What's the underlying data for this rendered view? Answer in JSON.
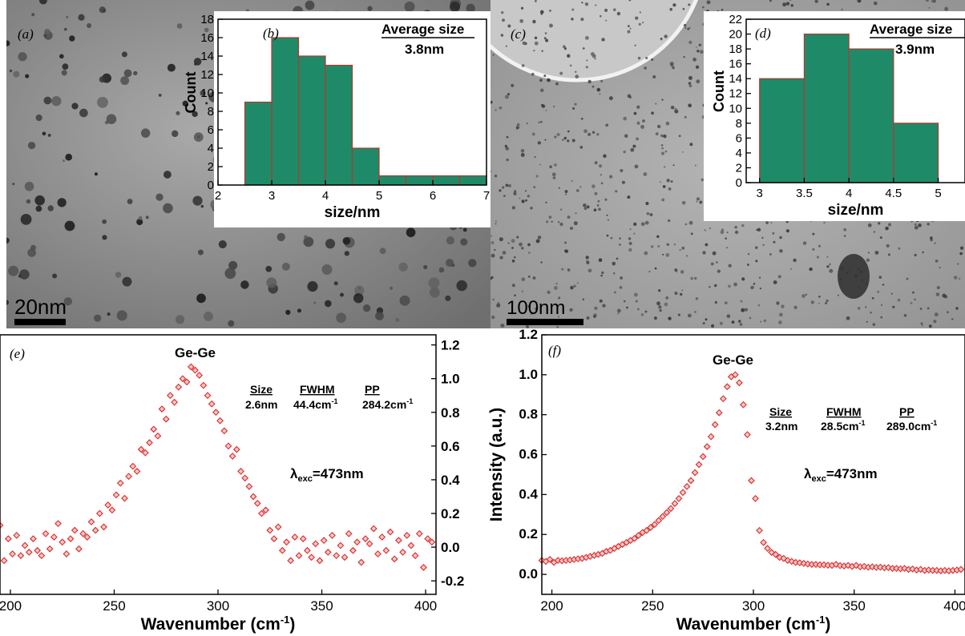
{
  "panels": {
    "a": {
      "label": "(a)",
      "scale_bar": "20nm"
    },
    "b": {
      "label": "(b)",
      "avg_title": "Average size",
      "avg_value": "3.8nm"
    },
    "c": {
      "label": "(c)",
      "scale_bar": "100nm"
    },
    "d": {
      "label": "(d)",
      "avg_title": "Average size",
      "avg_value": "3.9nm"
    },
    "e": {
      "label": "(e)",
      "peak_label": "Ge-Ge",
      "table": {
        "h1": "Size",
        "h2": "FWHM",
        "h3": "PP",
        "v1": "2.6nm",
        "v2": "44.4cm",
        "v3": "284.2cm",
        "sup": "-1"
      },
      "lambda": {
        "base": "λ",
        "sub": "exc",
        "rest": "=473nm"
      }
    },
    "f": {
      "label": "(f)",
      "peak_label": "Ge-Ge",
      "table": {
        "h1": "Size",
        "h2": "FWHM",
        "h3": "PP",
        "v1": "3.2nm",
        "v2": "28.5cm",
        "v3": "289.0cm",
        "sup": "-1"
      },
      "lambda": {
        "base": "λ",
        "sub": "exc",
        "rest": "=473nm"
      }
    }
  },
  "colors": {
    "bar_fill": "#1f8a68",
    "bar_edge": "#b0392f",
    "marker": "#d92b2b",
    "tem_a_bg": "#8c8c8c",
    "tem_c_bg": "#a8a8a8"
  },
  "chart_data": [
    {
      "id": "b",
      "type": "bar",
      "bin_edges": [
        2.5,
        3.0,
        3.5,
        4.0,
        4.5,
        5.0,
        5.5,
        6.0,
        6.5,
        7.0
      ],
      "values": [
        9,
        16,
        14,
        13,
        4,
        1,
        1,
        1,
        1
      ],
      "xlabel": "size/nm",
      "ylabel": "Count",
      "xlim": [
        2,
        7
      ],
      "ylim": [
        0,
        18
      ],
      "xticks": [
        2,
        3,
        4,
        5,
        6,
        7
      ],
      "xtick_labels": [
        "2",
        "3",
        "4",
        "5",
        "6",
        "7"
      ],
      "yticks": [
        0,
        2,
        4,
        6,
        8,
        10,
        12,
        14,
        16,
        18
      ],
      "ytick_labels": [
        "0",
        "2",
        "4",
        "6",
        "8",
        "10",
        "12",
        "14",
        "16",
        "18"
      ]
    },
    {
      "id": "d",
      "type": "bar",
      "bin_edges": [
        3.0,
        3.5,
        4.0,
        4.5,
        5.0
      ],
      "values": [
        14,
        20,
        18,
        8
      ],
      "xlabel": "size/nm",
      "ylabel": "Count",
      "xlim": [
        2.85,
        5.3
      ],
      "ylim": [
        0,
        22
      ],
      "xticks": [
        3,
        3.5,
        4,
        4.5,
        5
      ],
      "xtick_labels": [
        "3",
        "3.5",
        "4",
        "4.5",
        "5"
      ],
      "yticks": [
        0,
        2,
        4,
        6,
        8,
        10,
        12,
        14,
        16,
        18,
        20,
        22
      ],
      "ytick_labels": [
        "0",
        "2",
        "4",
        "6",
        "8",
        "10",
        "12",
        "14",
        "16",
        "18",
        "20",
        "22"
      ]
    },
    {
      "id": "e",
      "type": "scatter",
      "x": [
        195,
        197,
        199,
        201,
        203,
        205,
        207,
        209,
        211,
        213,
        215,
        217,
        219,
        221,
        223,
        225,
        227,
        229,
        231,
        233,
        235,
        237,
        239,
        241,
        243,
        245,
        247,
        249,
        251,
        253,
        255,
        257,
        259,
        261,
        263,
        265,
        267,
        269,
        271,
        273,
        275,
        277,
        279,
        281,
        283,
        285,
        287,
        289,
        291,
        293,
        295,
        297,
        299,
        301,
        303,
        305,
        307,
        309,
        311,
        313,
        315,
        317,
        319,
        321,
        323,
        325,
        327,
        329,
        331,
        333,
        335,
        337,
        339,
        341,
        343,
        345,
        347,
        349,
        351,
        353,
        355,
        357,
        359,
        361,
        363,
        365,
        367,
        369,
        371,
        373,
        375,
        377,
        379,
        381,
        383,
        385,
        387,
        389,
        391,
        393,
        395,
        397,
        399,
        401,
        403
      ],
      "y": [
        0.13,
        -0.08,
        0.05,
        -0.04,
        0.07,
        -0.05,
        0.01,
        -0.03,
        0.05,
        -0.02,
        -0.05,
        0.08,
        -0.01,
        0.06,
        0.14,
        0.03,
        -0.04,
        0.05,
        0.1,
        -0.01,
        0.08,
        0.06,
        0.15,
        0.1,
        0.2,
        0.12,
        0.25,
        0.22,
        0.31,
        0.38,
        0.29,
        0.42,
        0.48,
        0.45,
        0.58,
        0.56,
        0.62,
        0.7,
        0.66,
        0.82,
        0.76,
        0.9,
        0.86,
        0.95,
        1.0,
        0.98,
        1.07,
        1.05,
        1.02,
        0.96,
        0.9,
        0.85,
        0.8,
        0.75,
        0.69,
        0.6,
        0.54,
        0.58,
        0.45,
        0.41,
        0.36,
        0.3,
        0.26,
        0.2,
        0.22,
        0.1,
        0.05,
        0.12,
        -0.02,
        0.03,
        -0.08,
        0.06,
        -0.05,
        0.05,
        -0.02,
        -0.06,
        0.02,
        -0.08,
        0.04,
        -0.03,
        0.07,
        -0.05,
        0.01,
        -0.06,
        0.08,
        -0.02,
        0.03,
        -0.09,
        0.05,
        0.02,
        0.11,
        -0.04,
        0.06,
        -0.02,
        0.09,
        -0.07,
        0.04,
        -0.03,
        0.07,
        0.01,
        -0.05,
        0.08,
        -0.12,
        0.05,
        0.03
      ],
      "xlabel": "Wavenumber (cm",
      "xlabel_sup": "-1",
      "xlabel_end": ")",
      "ylabel": "",
      "xlim": [
        195,
        405
      ],
      "ylim": [
        -0.28,
        1.26
      ],
      "xticks": [
        200,
        250,
        300,
        350,
        400
      ],
      "xtick_labels": [
        "200",
        "250",
        "300",
        "350",
        "400"
      ],
      "yticks": [
        -0.2,
        0.0,
        0.2,
        0.4,
        0.6,
        0.8,
        1.0,
        1.2
      ],
      "ytick_labels": [
        "-0.2",
        "0.0",
        "0.2",
        "0.4",
        "0.6",
        "0.8",
        "1.0",
        "1.2"
      ]
    },
    {
      "id": "f",
      "type": "scatter",
      "x": [
        195,
        197,
        199,
        201,
        203,
        205,
        207,
        209,
        211,
        213,
        215,
        217,
        219,
        221,
        223,
        225,
        227,
        229,
        231,
        233,
        235,
        237,
        239,
        241,
        243,
        245,
        247,
        249,
        251,
        253,
        255,
        257,
        259,
        261,
        263,
        265,
        267,
        269,
        271,
        273,
        275,
        277,
        279,
        281,
        283,
        285,
        287,
        289,
        291,
        293,
        295,
        297,
        299,
        301,
        303,
        305,
        307,
        309,
        311,
        313,
        315,
        317,
        319,
        321,
        323,
        325,
        327,
        329,
        331,
        333,
        335,
        337,
        339,
        341,
        343,
        345,
        347,
        349,
        351,
        353,
        355,
        357,
        359,
        361,
        363,
        365,
        367,
        369,
        371,
        373,
        375,
        377,
        379,
        381,
        383,
        385,
        387,
        389,
        391,
        393,
        395,
        397,
        399,
        401,
        403
      ],
      "y": [
        0.07,
        0.065,
        0.075,
        0.06,
        0.07,
        0.068,
        0.07,
        0.072,
        0.075,
        0.078,
        0.08,
        0.085,
        0.09,
        0.095,
        0.1,
        0.105,
        0.115,
        0.12,
        0.13,
        0.14,
        0.15,
        0.16,
        0.17,
        0.18,
        0.195,
        0.21,
        0.22,
        0.235,
        0.25,
        0.27,
        0.29,
        0.31,
        0.33,
        0.355,
        0.38,
        0.41,
        0.44,
        0.47,
        0.51,
        0.55,
        0.59,
        0.64,
        0.69,
        0.75,
        0.81,
        0.88,
        0.94,
        0.99,
        1.0,
        0.96,
        0.85,
        0.7,
        0.47,
        0.38,
        0.22,
        0.16,
        0.13,
        0.11,
        0.1,
        0.085,
        0.08,
        0.07,
        0.065,
        0.06,
        0.058,
        0.055,
        0.052,
        0.05,
        0.05,
        0.048,
        0.048,
        0.046,
        0.045,
        0.05,
        0.044,
        0.042,
        0.045,
        0.04,
        0.045,
        0.038,
        0.04,
        0.036,
        0.038,
        0.035,
        0.036,
        0.033,
        0.034,
        0.03,
        0.03,
        0.028,
        0.03,
        0.025,
        0.027,
        0.022,
        0.025,
        0.02,
        0.022,
        0.02,
        0.02,
        0.018,
        0.02,
        0.018,
        0.02,
        0.022,
        0.025
      ],
      "xlabel": "Wavenumber (cm",
      "xlabel_sup": "-1",
      "xlabel_end": ")",
      "ylabel": "Intensity (a.u.)",
      "xlim": [
        195,
        405
      ],
      "ylim": [
        -0.1,
        1.2
      ],
      "xticks": [
        200,
        250,
        300,
        350,
        400
      ],
      "xtick_labels": [
        "200",
        "250",
        "300",
        "350",
        "400"
      ],
      "yticks": [
        0.0,
        0.2,
        0.4,
        0.6,
        0.8,
        1.0,
        1.2
      ],
      "ytick_labels": [
        "0.0",
        "0.2",
        "0.4",
        "0.6",
        "0.8",
        "1.0",
        "1.2"
      ]
    }
  ]
}
